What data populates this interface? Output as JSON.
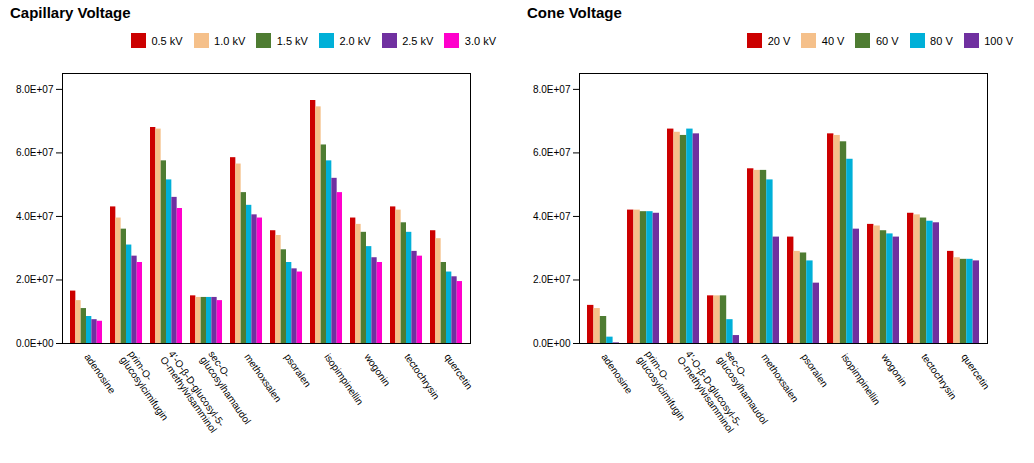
{
  "chart_data": [
    {
      "type": "bar",
      "title": "Capillary Voltage",
      "categories": [
        "adenosine",
        "prim-O-\nglucosylcimifugin",
        "4'-O-β-D-glucosyl-5-\nO-methylvisamminol",
        "sec-O-\nglucosylhamaudol",
        "methoxsalen",
        "psoralen",
        "isopimpinellin",
        "wogonin",
        "tectochrysin",
        "quercetin"
      ],
      "series": [
        {
          "name": "0.5 kV",
          "color": "#CC0000",
          "values": [
            16500000.0,
            43000000.0,
            68000000.0,
            15000000.0,
            58500000.0,
            35500000.0,
            76500000.0,
            39500000.0,
            43000000.0,
            35500000.0
          ]
        },
        {
          "name": "1.0 kV",
          "color": "#F5C08A",
          "values": [
            13500000.0,
            39500000.0,
            67500000.0,
            14500000.0,
            56500000.0,
            34000000.0,
            74500000.0,
            37500000.0,
            42000000.0,
            33000000.0
          ]
        },
        {
          "name": "1.5 kV",
          "color": "#4E7C32",
          "values": [
            11000000.0,
            36000000.0,
            57500000.0,
            14500000.0,
            47500000.0,
            29500000.0,
            62500000.0,
            35000000.0,
            38000000.0,
            25500000.0
          ]
        },
        {
          "name": "2.0 kV",
          "color": "#00B0D8",
          "values": [
            8500000.0,
            31000000.0,
            51500000.0,
            14500000.0,
            43500000.0,
            25500000.0,
            57500000.0,
            30500000.0,
            35000000.0,
            22500000.0
          ]
        },
        {
          "name": "2.5 kV",
          "color": "#7030A0",
          "values": [
            7500000.0,
            27500000.0,
            46000000.0,
            14500000.0,
            40500000.0,
            23500000.0,
            52000000.0,
            27000000.0,
            29000000.0,
            21000000.0
          ]
        },
        {
          "name": "3.0 kV",
          "color": "#FF00CC",
          "values": [
            7000000.0,
            25500000.0,
            42500000.0,
            13500000.0,
            39500000.0,
            22500000.0,
            47500000.0,
            25500000.0,
            27500000.0,
            19500000.0
          ]
        }
      ],
      "ylim": [
        0,
        85000000.0
      ],
      "yticks": [
        {
          "value": 0,
          "label": "0.0E+00"
        },
        {
          "value": 20000000.0,
          "label": "2.0E+07"
        },
        {
          "value": 40000000.0,
          "label": "4.0E+07"
        },
        {
          "value": 60000000.0,
          "label": "6.0E+07"
        },
        {
          "value": 80000000.0,
          "label": "8.0E+07"
        }
      ],
      "grid": false,
      "legend": "upper right"
    },
    {
      "type": "bar",
      "title": "Cone Voltage",
      "categories": [
        "adenosine",
        "prim-O-\nglucosylcimifugin",
        "4'-O-β-D-glucosyl-5-\nO-methylvisamminol",
        "sec-O-\nglucosylhamaudol",
        "methoxsalen",
        "psoralen",
        "isopimpinellin",
        "wogonin",
        "tectochrysin",
        "quercetin"
      ],
      "series": [
        {
          "name": "20 V",
          "color": "#CC0000",
          "values": [
            12000000.0,
            42000000.0,
            67500000.0,
            15000000.0,
            55000000.0,
            33500000.0,
            66000000.0,
            37500000.0,
            41000000.0,
            29000000.0
          ]
        },
        {
          "name": "40 V",
          "color": "#F5C08A",
          "values": [
            11000000.0,
            42000000.0,
            66500000.0,
            15000000.0,
            54500000.0,
            29000000.0,
            65500000.0,
            37000000.0,
            40500000.0,
            27000000.0
          ]
        },
        {
          "name": "60 V",
          "color": "#4E7C32",
          "values": [
            8500000.0,
            41500000.0,
            65500000.0,
            15000000.0,
            54500000.0,
            28500000.0,
            63500000.0,
            35500000.0,
            39500000.0,
            26500000.0
          ]
        },
        {
          "name": "80 V",
          "color": "#00B0D8",
          "values": [
            2000000.0,
            41500000.0,
            67500000.0,
            7500000.0,
            51500000.0,
            26000000.0,
            58000000.0,
            34500000.0,
            38500000.0,
            26500000.0
          ]
        },
        {
          "name": "100 V",
          "color": "#7030A0",
          "values": [
            200000.0,
            41000000.0,
            66000000.0,
            2500000.0,
            33500000.0,
            19000000.0,
            36000000.0,
            33500000.0,
            38000000.0,
            26000000.0
          ]
        }
      ],
      "ylim": [
        0,
        85000000.0
      ],
      "yticks": [
        {
          "value": 0,
          "label": "0.0E+00"
        },
        {
          "value": 20000000.0,
          "label": "2.0E+07"
        },
        {
          "value": 40000000.0,
          "label": "4.0E+07"
        },
        {
          "value": 60000000.0,
          "label": "6.0E+07"
        },
        {
          "value": 80000000.0,
          "label": "8.0E+07"
        }
      ],
      "grid": false,
      "legend": "upper right"
    }
  ]
}
